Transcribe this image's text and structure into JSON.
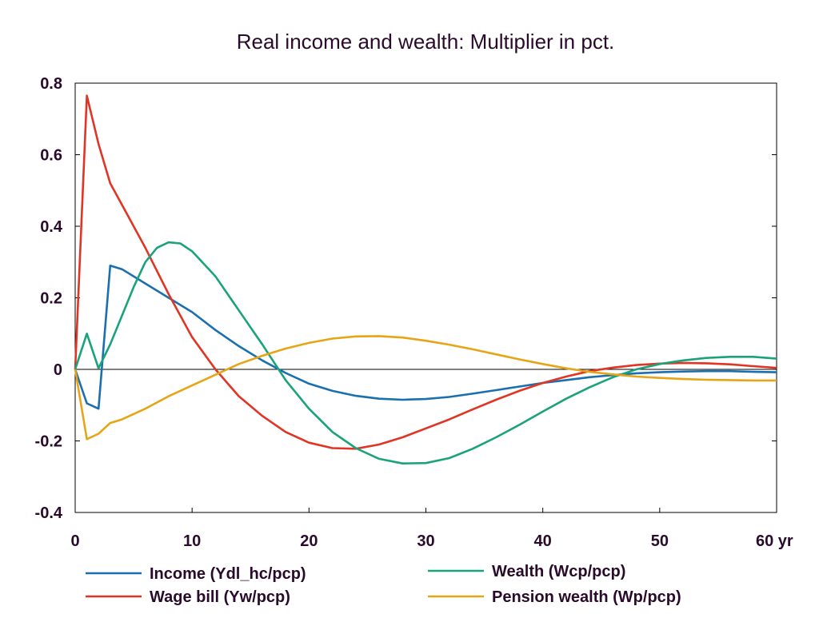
{
  "chart_data": {
    "type": "line",
    "title": "Real income and wealth: Multiplier in pct.",
    "xlabel": "",
    "ylabel": "",
    "xlim": [
      0,
      60
    ],
    "ylim": [
      -0.4,
      0.8
    ],
    "x_ticks": [
      0,
      10,
      20,
      30,
      40,
      50,
      60
    ],
    "x_tick_labels": [
      "0",
      "10",
      "20",
      "30",
      "40",
      "50",
      "60 yr"
    ],
    "y_ticks": [
      -0.4,
      -0.2,
      0,
      0.2,
      0.4,
      0.6,
      0.8
    ],
    "y_tick_labels": [
      "-0.4",
      "-0.2",
      "0",
      "0.2",
      "0.4",
      "0.6",
      "0.8"
    ],
    "grid": false,
    "zero_line": true,
    "legend_position": "bottom",
    "series": [
      {
        "name": "Income (Ydl_hc/pcp)",
        "color": "#1a6fb0",
        "points": [
          [
            0,
            0
          ],
          [
            1,
            -0.095
          ],
          [
            2,
            -0.11
          ],
          [
            3,
            0.29
          ],
          [
            4,
            0.28
          ],
          [
            6,
            0.24
          ],
          [
            8,
            0.2
          ],
          [
            10,
            0.16
          ],
          [
            12,
            0.11
          ],
          [
            14,
            0.065
          ],
          [
            16,
            0.025
          ],
          [
            18,
            -0.01
          ],
          [
            20,
            -0.04
          ],
          [
            22,
            -0.06
          ],
          [
            24,
            -0.074
          ],
          [
            26,
            -0.082
          ],
          [
            28,
            -0.085
          ],
          [
            30,
            -0.083
          ],
          [
            32,
            -0.077
          ],
          [
            34,
            -0.068
          ],
          [
            36,
            -0.058
          ],
          [
            38,
            -0.048
          ],
          [
            40,
            -0.038
          ],
          [
            42,
            -0.03
          ],
          [
            44,
            -0.022
          ],
          [
            46,
            -0.016
          ],
          [
            48,
            -0.011
          ],
          [
            50,
            -0.008
          ],
          [
            52,
            -0.006
          ],
          [
            54,
            -0.005
          ],
          [
            56,
            -0.005
          ],
          [
            58,
            -0.007
          ],
          [
            60,
            -0.008
          ]
        ]
      },
      {
        "name": "Wage bill (Yw/pcp)",
        "color": "#e03524",
        "points": [
          [
            0,
            0
          ],
          [
            1,
            0.765
          ],
          [
            2,
            0.63
          ],
          [
            3,
            0.52
          ],
          [
            4,
            0.46
          ],
          [
            6,
            0.34
          ],
          [
            8,
            0.21
          ],
          [
            10,
            0.09
          ],
          [
            12,
            0
          ],
          [
            14,
            -0.075
          ],
          [
            16,
            -0.13
          ],
          [
            18,
            -0.175
          ],
          [
            20,
            -0.205
          ],
          [
            22,
            -0.22
          ],
          [
            24,
            -0.222
          ],
          [
            26,
            -0.21
          ],
          [
            28,
            -0.19
          ],
          [
            30,
            -0.165
          ],
          [
            32,
            -0.14
          ],
          [
            34,
            -0.112
          ],
          [
            36,
            -0.085
          ],
          [
            38,
            -0.06
          ],
          [
            40,
            -0.038
          ],
          [
            42,
            -0.02
          ],
          [
            44,
            -0.005
          ],
          [
            46,
            0.005
          ],
          [
            48,
            0.012
          ],
          [
            50,
            0.016
          ],
          [
            52,
            0.018
          ],
          [
            54,
            0.017
          ],
          [
            56,
            0.014
          ],
          [
            58,
            0.009
          ],
          [
            60,
            0.004
          ]
        ]
      },
      {
        "name": "Wealth (Wcp/pcp)",
        "color": "#1aa37a",
        "points": [
          [
            0,
            0
          ],
          [
            1,
            0.1
          ],
          [
            2,
            0.003
          ],
          [
            3,
            0.07
          ],
          [
            4,
            0.15
          ],
          [
            5,
            0.23
          ],
          [
            6,
            0.3
          ],
          [
            7,
            0.34
          ],
          [
            8,
            0.355
          ],
          [
            9,
            0.352
          ],
          [
            10,
            0.33
          ],
          [
            12,
            0.26
          ],
          [
            14,
            0.165
          ],
          [
            16,
            0.07
          ],
          [
            18,
            -0.03
          ],
          [
            20,
            -0.11
          ],
          [
            22,
            -0.175
          ],
          [
            24,
            -0.22
          ],
          [
            26,
            -0.25
          ],
          [
            28,
            -0.263
          ],
          [
            30,
            -0.262
          ],
          [
            32,
            -0.248
          ],
          [
            34,
            -0.222
          ],
          [
            36,
            -0.19
          ],
          [
            38,
            -0.155
          ],
          [
            40,
            -0.118
          ],
          [
            42,
            -0.082
          ],
          [
            44,
            -0.05
          ],
          [
            46,
            -0.022
          ],
          [
            48,
            0
          ],
          [
            50,
            0.015
          ],
          [
            52,
            0.025
          ],
          [
            54,
            0.032
          ],
          [
            56,
            0.035
          ],
          [
            58,
            0.035
          ],
          [
            60,
            0.03
          ]
        ]
      },
      {
        "name": "Pension wealth (Wp/pcp)",
        "color": "#e6a516",
        "points": [
          [
            0,
            0
          ],
          [
            1,
            -0.195
          ],
          [
            2,
            -0.18
          ],
          [
            3,
            -0.15
          ],
          [
            4,
            -0.14
          ],
          [
            6,
            -0.11
          ],
          [
            8,
            -0.075
          ],
          [
            10,
            -0.045
          ],
          [
            12,
            -0.015
          ],
          [
            14,
            0.015
          ],
          [
            16,
            0.038
          ],
          [
            18,
            0.058
          ],
          [
            20,
            0.074
          ],
          [
            22,
            0.086
          ],
          [
            24,
            0.092
          ],
          [
            26,
            0.093
          ],
          [
            28,
            0.089
          ],
          [
            30,
            0.08
          ],
          [
            32,
            0.069
          ],
          [
            34,
            0.056
          ],
          [
            36,
            0.042
          ],
          [
            38,
            0.028
          ],
          [
            40,
            0.015
          ],
          [
            42,
            0.003
          ],
          [
            44,
            -0.007
          ],
          [
            46,
            -0.014
          ],
          [
            48,
            -0.02
          ],
          [
            50,
            -0.024
          ],
          [
            52,
            -0.027
          ],
          [
            54,
            -0.029
          ],
          [
            56,
            -0.03
          ],
          [
            58,
            -0.031
          ],
          [
            60,
            -0.031
          ]
        ]
      }
    ]
  }
}
